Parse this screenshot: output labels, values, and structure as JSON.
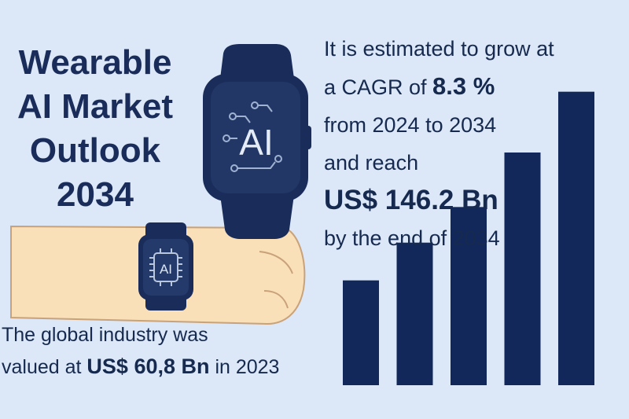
{
  "title": {
    "line1": "Wearable",
    "line2": "AI Market",
    "line3": "Outlook",
    "line4": "2034"
  },
  "forecast": {
    "line1": "It is estimated to grow at",
    "cagr_prefix": "a CAGR of ",
    "cagr_value": "8.3 %",
    "line3": "from 2024 to 2034",
    "line4": "and reach",
    "market_value": "US$ 146.2 Bn",
    "line6": "by the end of 2034"
  },
  "base": {
    "line1": "The global industry was",
    "prefix": "valued at ",
    "value": "US$ 60,8 Bn",
    "suffix": " in 2023"
  },
  "watch_large": {
    "label": "AI"
  },
  "watch_small": {
    "label": "AI"
  },
  "colors": {
    "background": "#dce8f7",
    "navy": "#1a2d5a",
    "bar": "#13285a",
    "skin": "#f9e0b8",
    "skin_outline": "#c9a27a"
  },
  "chart_data": {
    "type": "bar",
    "values": [
      1.0,
      1.36,
      1.7,
      2.22,
      2.8
    ],
    "ylim": [
      0,
      3
    ]
  }
}
